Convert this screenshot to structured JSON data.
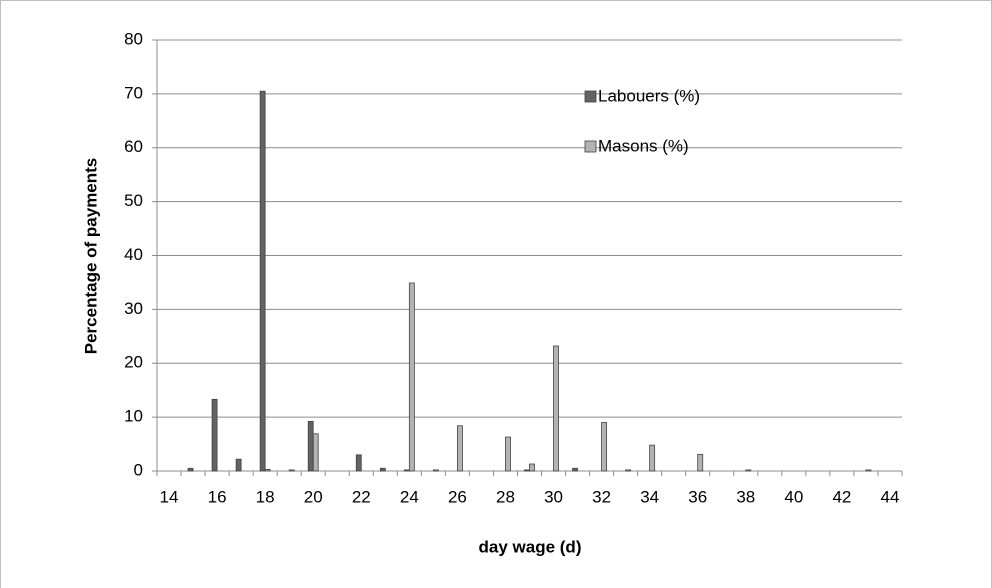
{
  "chart_data": {
    "type": "bar",
    "x_label": "day wage (d)",
    "y_label": "Percentage of payments",
    "categories": [
      "14",
      null,
      "16",
      null,
      "18",
      null,
      "20",
      null,
      "22",
      null,
      "24",
      null,
      "26",
      null,
      "28",
      null,
      "30",
      null,
      "32",
      null,
      "34",
      null,
      "36",
      null,
      "38",
      null,
      "40",
      null,
      "42",
      null,
      "44"
    ],
    "series": [
      {
        "name": "Labouers (%)",
        "color": "#636363",
        "values": [
          0,
          0.5,
          13.3,
          2.2,
          70.5,
          0,
          9.2,
          0,
          3,
          0.5,
          0.2,
          0,
          0,
          0,
          0,
          0.2,
          0,
          0.5,
          0,
          0,
          0,
          0,
          0,
          0,
          0,
          0,
          0,
          0,
          0,
          0,
          0
        ]
      },
      {
        "name": "Masons (%)",
        "color": "#b3b3b3",
        "values": [
          0,
          0,
          0,
          0,
          0.3,
          0.2,
          6.9,
          0,
          0,
          0,
          34.9,
          0.2,
          8.4,
          0,
          6.3,
          1.3,
          23.2,
          0,
          9,
          0.2,
          4.8,
          0,
          3.1,
          0,
          0.2,
          0,
          0,
          0,
          0,
          0.2,
          0
        ]
      }
    ],
    "ylim": [
      0,
      80
    ],
    "yticks": [
      0,
      10,
      20,
      30,
      40,
      50,
      60,
      70,
      80
    ],
    "grid": true
  }
}
